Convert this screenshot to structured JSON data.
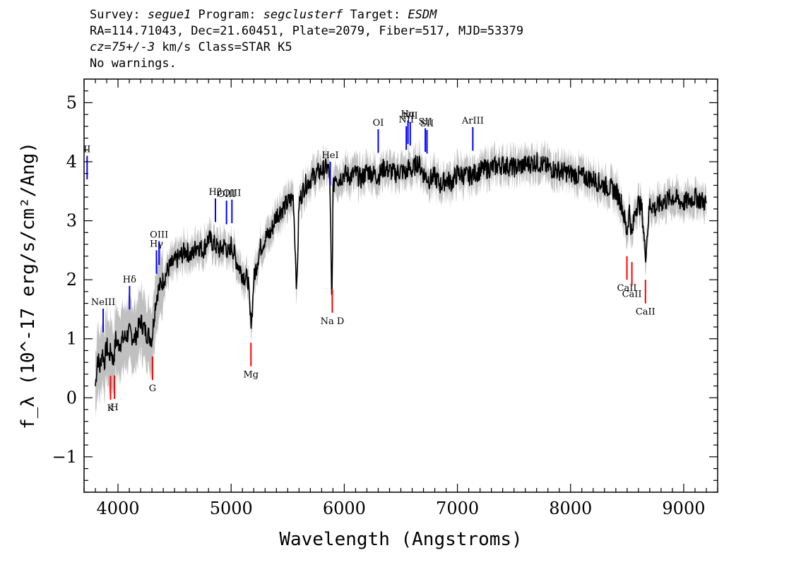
{
  "header": {
    "line1": {
      "survey_label": "Survey: ",
      "survey": "segue1",
      "program_label": " Program: ",
      "program": "segclusterf",
      "target_label": " Target: ",
      "target": "ESDM"
    },
    "line2": "RA=114.71043, Dec=21.60451, Plate=2079, Fiber=517, MJD=53379",
    "line3": {
      "cz": "cz=75+/-3",
      "rest": " km/s Class=STAR K5"
    },
    "line4": "No warnings."
  },
  "colors": {
    "spectrum": "#000000",
    "error": "#c0c0c0",
    "emission": "#0000ff",
    "absorption": "#ff0000",
    "axis": "#000000"
  },
  "chart_data": {
    "type": "line",
    "xlabel": "Wavelength (Angstroms)",
    "ylabel": "f_λ (10^-17 erg/s/cm²/Ang)",
    "xlim": [
      3700,
      9300
    ],
    "ylim": [
      -1.6,
      5.4
    ],
    "xticks": [
      4000,
      5000,
      6000,
      7000,
      8000,
      9000
    ],
    "yticks": [
      -1,
      0,
      1,
      2,
      3,
      4,
      5
    ],
    "xtick_labels": [
      "4000",
      "5000",
      "6000",
      "7000",
      "8000",
      "9000"
    ],
    "ytick_labels": [
      "−1",
      "0",
      "1",
      "2",
      "3",
      "4",
      "5"
    ],
    "series": [
      {
        "role": "flux",
        "x": [
          3800,
          3820,
          3840,
          3860,
          3880,
          3900,
          3920,
          3940,
          3960,
          3980,
          4000,
          4050,
          4100,
          4150,
          4200,
          4250,
          4300,
          4330,
          4350,
          4400,
          4450,
          4500,
          4550,
          4600,
          4650,
          4700,
          4750,
          4800,
          4850,
          4900,
          4950,
          4980,
          5000,
          5050,
          5100,
          5150,
          5170,
          5185,
          5200,
          5250,
          5300,
          5350,
          5400,
          5450,
          5500,
          5550,
          5580,
          5600,
          5650,
          5700,
          5750,
          5800,
          5850,
          5870,
          5880,
          5890,
          5900,
          5920,
          5950,
          6000,
          6050,
          6100,
          6150,
          6200,
          6250,
          6300,
          6350,
          6400,
          6450,
          6500,
          6550,
          6563,
          6600,
          6650,
          6700,
          6750,
          6800,
          6850,
          6900,
          6950,
          7000,
          7100,
          7200,
          7300,
          7400,
          7500,
          7600,
          7700,
          7800,
          7900,
          8000,
          8100,
          8200,
          8300,
          8400,
          8450,
          8498,
          8520,
          8542,
          8570,
          8600,
          8630,
          8662,
          8700,
          8750,
          8800,
          8900,
          9000,
          9100,
          9200
        ],
        "y": [
          0.2,
          0.7,
          0.5,
          0.8,
          0.6,
          0.9,
          0.7,
          0.8,
          0.6,
          1.0,
          0.9,
          1.0,
          1.1,
          1.0,
          1.3,
          1.1,
          1.0,
          1.6,
          1.8,
          2.0,
          2.2,
          2.3,
          2.4,
          2.5,
          2.4,
          2.6,
          2.5,
          2.7,
          2.6,
          2.5,
          2.6,
          2.4,
          2.6,
          2.3,
          2.1,
          2.0,
          1.3,
          1.4,
          2.0,
          2.5,
          2.7,
          2.8,
          3.1,
          3.2,
          3.3,
          3.4,
          1.8,
          3.3,
          3.6,
          3.7,
          3.8,
          3.85,
          3.9,
          3.8,
          2.8,
          1.4,
          3.5,
          3.8,
          3.7,
          3.8,
          3.75,
          3.8,
          3.7,
          3.85,
          3.8,
          3.75,
          3.9,
          3.85,
          3.8,
          3.85,
          3.8,
          3.9,
          3.85,
          4.0,
          3.8,
          3.7,
          3.75,
          3.6,
          3.7,
          3.65,
          3.8,
          3.75,
          3.85,
          3.9,
          3.95,
          3.9,
          3.95,
          4.0,
          3.9,
          3.85,
          3.8,
          3.75,
          3.7,
          3.6,
          3.5,
          3.3,
          2.8,
          3.2,
          2.7,
          3.2,
          3.3,
          3.2,
          2.4,
          3.3,
          3.2,
          3.3,
          3.4,
          3.3,
          3.4,
          3.3
        ]
      }
    ],
    "emission_lines": [
      {
        "label": "II",
        "x": 3727
      },
      {
        "label": "NeIII",
        "x": 3869
      },
      {
        "label": "Hδ",
        "x": 4102
      },
      {
        "label": "Hγ",
        "x": 4340
      },
      {
        "label": "OIII",
        "x": 4363
      },
      {
        "label": "Hβ",
        "x": 4861
      },
      {
        "label": "OIII",
        "x": 4959
      },
      {
        "label": "OIII",
        "x": 5007
      },
      {
        "label": "HeI",
        "x": 5876
      },
      {
        "label": "OI",
        "x": 6300
      },
      {
        "label": "NII",
        "x": 6548
      },
      {
        "label": "Hα",
        "x": 6563
      },
      {
        "label": "NII",
        "x": 6583
      },
      {
        "label": "SII",
        "x": 6716
      },
      {
        "label": "SII",
        "x": 6731
      },
      {
        "label": "ArIII",
        "x": 7136
      }
    ],
    "absorption_lines": [
      {
        "label": "K",
        "x": 3934
      },
      {
        "label": "H",
        "x": 3969
      },
      {
        "label": "G",
        "x": 4305
      },
      {
        "label": "Mg",
        "x": 5175
      },
      {
        "label": "Na D",
        "x": 5894
      },
      {
        "label": "CaII",
        "x": 8498
      },
      {
        "label": "CaII",
        "x": 8542
      },
      {
        "label": "CaII",
        "x": 8662
      }
    ]
  }
}
